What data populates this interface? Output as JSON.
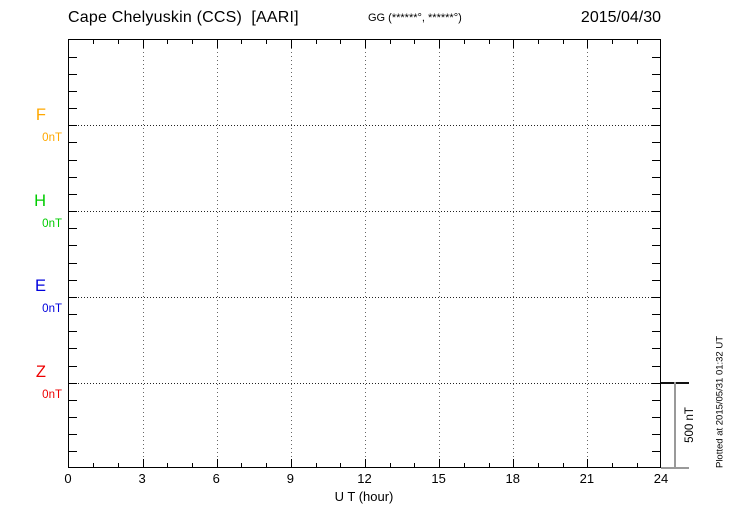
{
  "header": {
    "station_title": "Cape Chelyuskin (CCS)  [AARI]",
    "coords_label": "GG (******°, ******°)",
    "date": "2015/04/30"
  },
  "chart_data": {
    "type": "line",
    "title": "Cape Chelyuskin (CCS) [AARI]",
    "date": "2015/04/30",
    "xlabel": "U T (hour)",
    "xlim": [
      0,
      24
    ],
    "x_major_ticks": [
      0,
      3,
      6,
      9,
      12,
      15,
      18,
      21,
      24
    ],
    "x_minor_tick_step_hours": 1,
    "y_minor_tick_nT": 100,
    "channel_baseline_spacing_nT": 500,
    "grid": "dotted vertical lines every 3 hours; dotted horizontal line at each channel 0nT baseline",
    "legend_position": "left margin, one colored label per channel",
    "scale_bar": {
      "label": "500 nT",
      "value_nT": 500
    },
    "channels": [
      {
        "name": "F",
        "baseline_label": "0nT",
        "baseline_nT": 0,
        "color": "#FFA800",
        "values": []
      },
      {
        "name": "H",
        "baseline_label": "0nT",
        "baseline_nT": 0,
        "color": "#00CC00",
        "values": []
      },
      {
        "name": "E",
        "baseline_label": "0nT",
        "baseline_nT": 0,
        "color": "#0000DD",
        "values": []
      },
      {
        "name": "Z",
        "baseline_label": "0nT",
        "baseline_nT": 0,
        "color": "#EE0000",
        "values": []
      }
    ]
  },
  "footer": {
    "plotted_at": "Plotted at 2015/05/31 01:32 UT"
  }
}
